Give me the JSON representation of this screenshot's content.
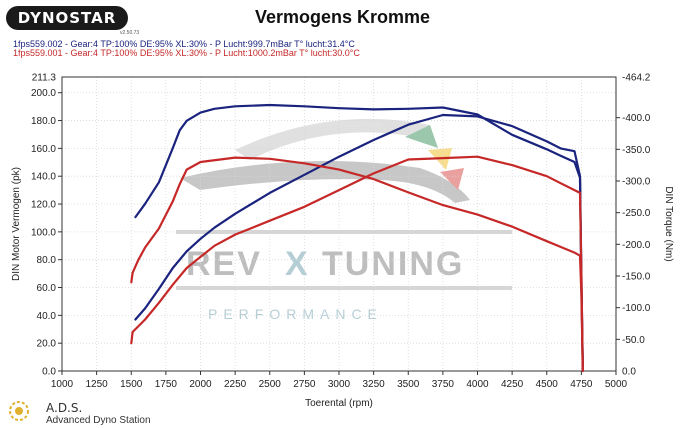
{
  "brand": {
    "logo": "DYNOSTAR",
    "logo_version": "v2.50.73"
  },
  "header": {
    "title": "Vermogens Kromme",
    "runs": [
      {
        "text": "1fps559.002 - Gear:4 TP:100% DE:95% XL:30%   - P Lucht:999.7mBar T° lucht:31.4°C",
        "color": "#1a237e"
      },
      {
        "text": "1fps559.001 - Gear:4 TP:100% DE:95% XL:30%   - P Lucht:1000.2mBar T° lucht:30.0°C",
        "color": "#c62828"
      }
    ]
  },
  "watermark": {
    "line1": "REV",
    "x": "X",
    "line2": "TUNING",
    "sub": "PERFORMANCE"
  },
  "footer": {
    "name": "A.D.S.",
    "full": "Advanced Dyno Station"
  },
  "chart_data": {
    "type": "line",
    "title": "Vermogens Kromme",
    "xlabel": "Toerental (rpm)",
    "ylabel": "DIN Motor Vermogen (pk)",
    "y2label": "DIN Torque (Nm)",
    "xlim": [
      1000,
      5000
    ],
    "ylim": [
      0,
      211.3
    ],
    "y2lim": [
      0,
      464.2
    ],
    "ylim_label": "211.3",
    "y2lim_label": "-464.2",
    "x_ticks": [
      1000,
      1250,
      1500,
      1750,
      2000,
      2250,
      2500,
      2750,
      3000,
      3250,
      3500,
      3750,
      4000,
      4250,
      4500,
      4750,
      5000
    ],
    "x_tick_labels": [
      "1000",
      "1250",
      "1500",
      "1750",
      "2000",
      "2250",
      "2500",
      "2750",
      "3000",
      "3250",
      "3500",
      "3750",
      "4000",
      "4250",
      "4500",
      "4750",
      "5000"
    ],
    "y_ticks": [
      0,
      20,
      40,
      60,
      80,
      100,
      120,
      140,
      160,
      180,
      200
    ],
    "y_tick_labels": [
      "0.0",
      "20.0",
      "40.0",
      "60.0",
      "80.0",
      "100.0",
      "120.0",
      "140.0",
      "160.0",
      "180.0",
      "200.0"
    ],
    "y2_ticks": [
      50,
      100,
      150,
      200,
      250,
      300,
      350,
      400
    ],
    "y2_tick_labels": [
      "-50.0",
      "-100.0",
      "-150.0",
      "-200.0",
      "-250.0",
      "-300.0",
      "-350.0",
      "-400.0"
    ],
    "y2_zero_label": "0.0",
    "grid": true,
    "series": [
      {
        "name": "1fps559.002",
        "kind": "power",
        "axis": "left",
        "color": "#1a237e",
        "x": [
          1530,
          1600,
          1700,
          1800,
          1900,
          2000,
          2100,
          2250,
          2500,
          2750,
          3000,
          3250,
          3500,
          3750,
          4000,
          4250,
          4500,
          4600,
          4700,
          4740,
          4750,
          4760
        ],
        "y": [
          37,
          45,
          59,
          74,
          86,
          95,
          103,
          113,
          128,
          141,
          154,
          166,
          177,
          184,
          183,
          176,
          165,
          160,
          158,
          140,
          60,
          5
        ]
      },
      {
        "name": "1fps559.002",
        "kind": "torque",
        "axis": "right",
        "color": "#1a237e",
        "x": [
          1530,
          1600,
          1700,
          1800,
          1850,
          1900,
          2000,
          2100,
          2250,
          2500,
          2750,
          3000,
          3250,
          3500,
          3750,
          4000,
          4250,
          4500,
          4600,
          4700,
          4740,
          4750,
          4760
        ],
        "y": [
          243,
          264,
          298,
          352,
          380,
          395,
          408,
          414,
          418,
          420,
          418,
          415,
          413,
          414,
          416,
          405,
          373,
          350,
          340,
          330,
          305,
          150,
          0
        ]
      },
      {
        "name": "1fps559.001",
        "kind": "power",
        "axis": "left",
        "color": "#c62828",
        "x": [
          1500,
          1510,
          1600,
          1700,
          1800,
          1900,
          2000,
          2100,
          2250,
          2500,
          2750,
          3000,
          3250,
          3500,
          3750,
          4000,
          4250,
          4500,
          4600,
          4700,
          4740,
          4750,
          4760
        ],
        "y": [
          20,
          28,
          37,
          49,
          62,
          74,
          82,
          90,
          98,
          108,
          118,
          130,
          142,
          152,
          153,
          154,
          148,
          140,
          135,
          130,
          128,
          70,
          0
        ]
      },
      {
        "name": "1fps559.001",
        "kind": "torque",
        "axis": "right",
        "color": "#c62828",
        "x": [
          1500,
          1510,
          1550,
          1600,
          1700,
          1800,
          1850,
          1900,
          2000,
          2250,
          2500,
          2750,
          3000,
          3250,
          3500,
          3750,
          4000,
          4250,
          4500,
          4600,
          4700,
          4740,
          4750,
          4760
        ],
        "y": [
          140,
          155,
          175,
          195,
          225,
          268,
          295,
          318,
          330,
          337,
          335,
          328,
          318,
          303,
          282,
          262,
          247,
          228,
          205,
          196,
          187,
          182,
          120,
          0
        ]
      }
    ]
  }
}
